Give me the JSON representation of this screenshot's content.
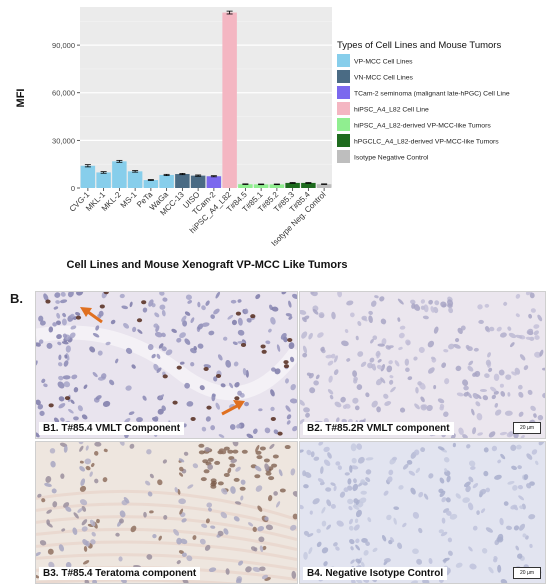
{
  "chart_data": {
    "type": "bar",
    "ylabel": "MFI",
    "xlabel": "Cell Lines and Mouse Xenograft VP-MCC Like Tumors",
    "ylim": [
      0,
      114000
    ],
    "yticks": [
      0,
      30000,
      60000,
      90000
    ],
    "ytick_labels": [
      "0",
      "30,000",
      "60,000",
      "90,000"
    ],
    "grid": true,
    "legend_position": "right",
    "legend_title": "Types of Cell Lines and Mouse Tumors",
    "legend": [
      {
        "label": "VP-MCC Cell Lines",
        "color": "#87CEEB"
      },
      {
        "label": "VN-MCC Cell Lines",
        "color": "#4A6B84"
      },
      {
        "label": "TCam-2 seminoma (malignant late-hPGC) Cell Line",
        "color": "#7B68EE"
      },
      {
        "label": "hiPSC_A4_L82 Cell Line",
        "color": "#F4B6C2"
      },
      {
        "label": "hiPSC_A4_L82-derived VP-MCC-like Tumors",
        "color": "#90EE90"
      },
      {
        "label": "hPGCLC_A4_L82-derived VP-MCC-like Tumors",
        "color": "#1E6B1E"
      },
      {
        "label": "Isotype Negative Control",
        "color": "#BEBEBE"
      }
    ],
    "categories": [
      "CVG-1",
      "MKL-1",
      "MKL-2",
      "MS-1",
      "PeTa",
      "WaGa",
      "MCC-13",
      "UISO",
      "TCam-2",
      "hiPSC_A4_L82",
      "T#84.5",
      "T#85.1",
      "T#85.2",
      "T#85.3",
      "T#85.4",
      "Isotype Neg. Control"
    ],
    "values": [
      14000,
      9800,
      16800,
      10500,
      5000,
      8200,
      8800,
      7800,
      7400,
      110500,
      2400,
      2300,
      2300,
      3200,
      3200,
      2400
    ],
    "errors": [
      700,
      500,
      600,
      500,
      300,
      400,
      400,
      400,
      350,
      900,
      200,
      200,
      200,
      250,
      250,
      200
    ],
    "groups": [
      0,
      0,
      0,
      0,
      0,
      0,
      1,
      1,
      2,
      3,
      4,
      4,
      4,
      5,
      5,
      6
    ]
  },
  "panel_b": {
    "letter": "B.",
    "images": [
      {
        "id": "B1",
        "caption": "B1. T#85.4 VMLT Component",
        "scale": "",
        "arrows": true
      },
      {
        "id": "B2",
        "caption": "B2. T#85.2R VMLT component",
        "scale": "20 µm",
        "arrows": false
      },
      {
        "id": "B3",
        "caption": "B3. T#85.4 Teratoma component",
        "scale": "",
        "arrows": false
      },
      {
        "id": "B4",
        "caption": "B4. Negative Isotype Control",
        "scale": "20 µm",
        "arrows": false
      }
    ]
  }
}
